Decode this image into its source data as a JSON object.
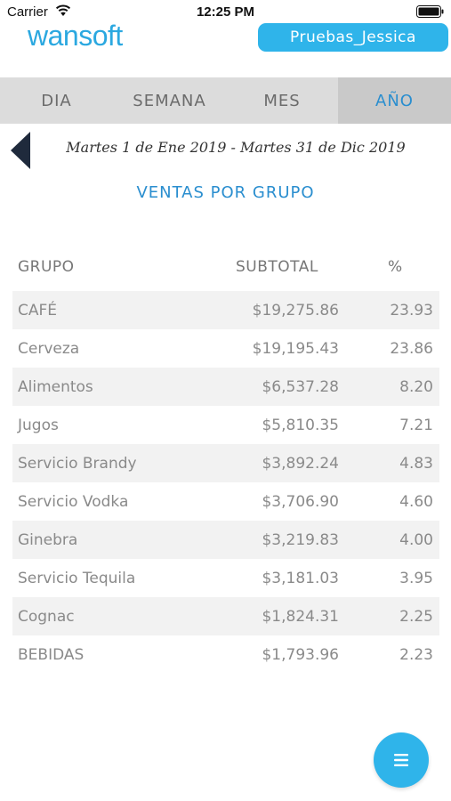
{
  "status_bar": {
    "carrier": "Carrier",
    "time": "12:25 PM"
  },
  "header": {
    "logo": "wansoft",
    "user_button": "Pruebas_Jessica"
  },
  "tabs": [
    {
      "label": "DIA",
      "active": false
    },
    {
      "label": "SEMANA",
      "active": false
    },
    {
      "label": "MES",
      "active": false
    },
    {
      "label": "AÑO",
      "active": true
    }
  ],
  "date_range": "Martes 1 de Ene 2019  -  Martes 31 de Dic 2019",
  "section_title": "VENTAS POR GRUPO",
  "table": {
    "headers": {
      "group": "GRUPO",
      "subtotal": "SUBTOTAL",
      "percent": "%"
    },
    "rows": [
      {
        "group": "CAFÉ",
        "subtotal": "$19,275.86",
        "percent": "23.93"
      },
      {
        "group": "Cerveza",
        "subtotal": "$19,195.43",
        "percent": "23.86"
      },
      {
        "group": "Alimentos",
        "subtotal": "$6,537.28",
        "percent": "8.20"
      },
      {
        "group": "Jugos",
        "subtotal": "$5,810.35",
        "percent": "7.21"
      },
      {
        "group": "Servicio Brandy",
        "subtotal": "$3,892.24",
        "percent": "4.83"
      },
      {
        "group": "Servicio Vodka",
        "subtotal": "$3,706.90",
        "percent": "4.60"
      },
      {
        "group": "Ginebra",
        "subtotal": "$3,219.83",
        "percent": "4.00"
      },
      {
        "group": "Servicio Tequila",
        "subtotal": "$3,181.03",
        "percent": "3.95"
      },
      {
        "group": "Cognac",
        "subtotal": "$1,824.31",
        "percent": "2.25"
      },
      {
        "group": "BEBIDAS",
        "subtotal": "$1,793.96",
        "percent": "2.23"
      }
    ]
  },
  "icons": {
    "back": "chevron-left-icon",
    "menu": "menu-icon",
    "wifi": "wifi-icon",
    "battery": "battery-icon"
  },
  "colors": {
    "accent": "#2fb4ea",
    "accent_text": "#2a8ecf",
    "tab_bar": "#dcdcdc",
    "tab_active": "#c9c9c9",
    "row_stripe": "#f2f2f2"
  }
}
